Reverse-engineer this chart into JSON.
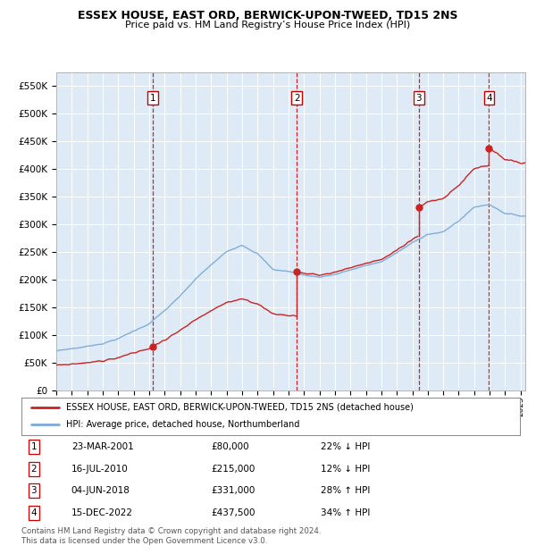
{
  "title": "ESSEX HOUSE, EAST ORD, BERWICK-UPON-TWEED, TD15 2NS",
  "subtitle": "Price paid vs. HM Land Registry’s House Price Index (HPI)",
  "hpi_color": "#7aabdb",
  "price_color": "#cc2222",
  "vline_color": "#cc0000",
  "background_color": "#deeaf5",
  "grid_color": "#ffffff",
  "ylim": [
    0,
    575000
  ],
  "yticks": [
    0,
    50000,
    100000,
    150000,
    200000,
    250000,
    300000,
    350000,
    400000,
    450000,
    500000,
    550000
  ],
  "ytick_labels": [
    "£0",
    "£50K",
    "£100K",
    "£150K",
    "£200K",
    "£250K",
    "£300K",
    "£350K",
    "£400K",
    "£450K",
    "£500K",
    "£550K"
  ],
  "legend_line1": "ESSEX HOUSE, EAST ORD, BERWICK-UPON-TWEED, TD15 2NS (detached house)",
  "legend_line2": "HPI: Average price, detached house, Northumberland",
  "transactions": [
    {
      "num": 1,
      "date": "23-MAR-2001",
      "price": 80000,
      "pct": "22%",
      "dir": "↓",
      "x_year": 2001.22
    },
    {
      "num": 2,
      "date": "16-JUL-2010",
      "price": 215000,
      "pct": "12%",
      "dir": "↓",
      "x_year": 2010.54
    },
    {
      "num": 3,
      "date": "04-JUN-2018",
      "price": 331000,
      "pct": "28%",
      "dir": "↑",
      "x_year": 2018.42
    },
    {
      "num": 4,
      "date": "15-DEC-2022",
      "price": 437500,
      "pct": "34%",
      "dir": "↑",
      "x_year": 2022.96
    }
  ],
  "footer": "Contains HM Land Registry data © Crown copyright and database right 2024.\nThis data is licensed under the Open Government Licence v3.0.",
  "xmin": 1995.0,
  "xmax": 2025.3,
  "hpi_knots_x": [
    1995,
    1996,
    1997,
    1998,
    1999,
    2000,
    2001,
    2002,
    2003,
    2004,
    2005,
    2006,
    2007,
    2008,
    2009,
    2010,
    2011,
    2012,
    2013,
    2014,
    2015,
    2016,
    2017,
    2018,
    2019,
    2020,
    2021,
    2022,
    2023,
    2024,
    2025
  ],
  "hpi_knots_y": [
    72000,
    76000,
    80000,
    86000,
    95000,
    108000,
    122000,
    145000,
    170000,
    200000,
    225000,
    248000,
    262000,
    248000,
    218000,
    215000,
    208000,
    205000,
    210000,
    218000,
    225000,
    232000,
    248000,
    265000,
    282000,
    285000,
    305000,
    330000,
    335000,
    320000,
    315000
  ],
  "figsize": [
    6.0,
    6.2
  ],
  "dpi": 100
}
